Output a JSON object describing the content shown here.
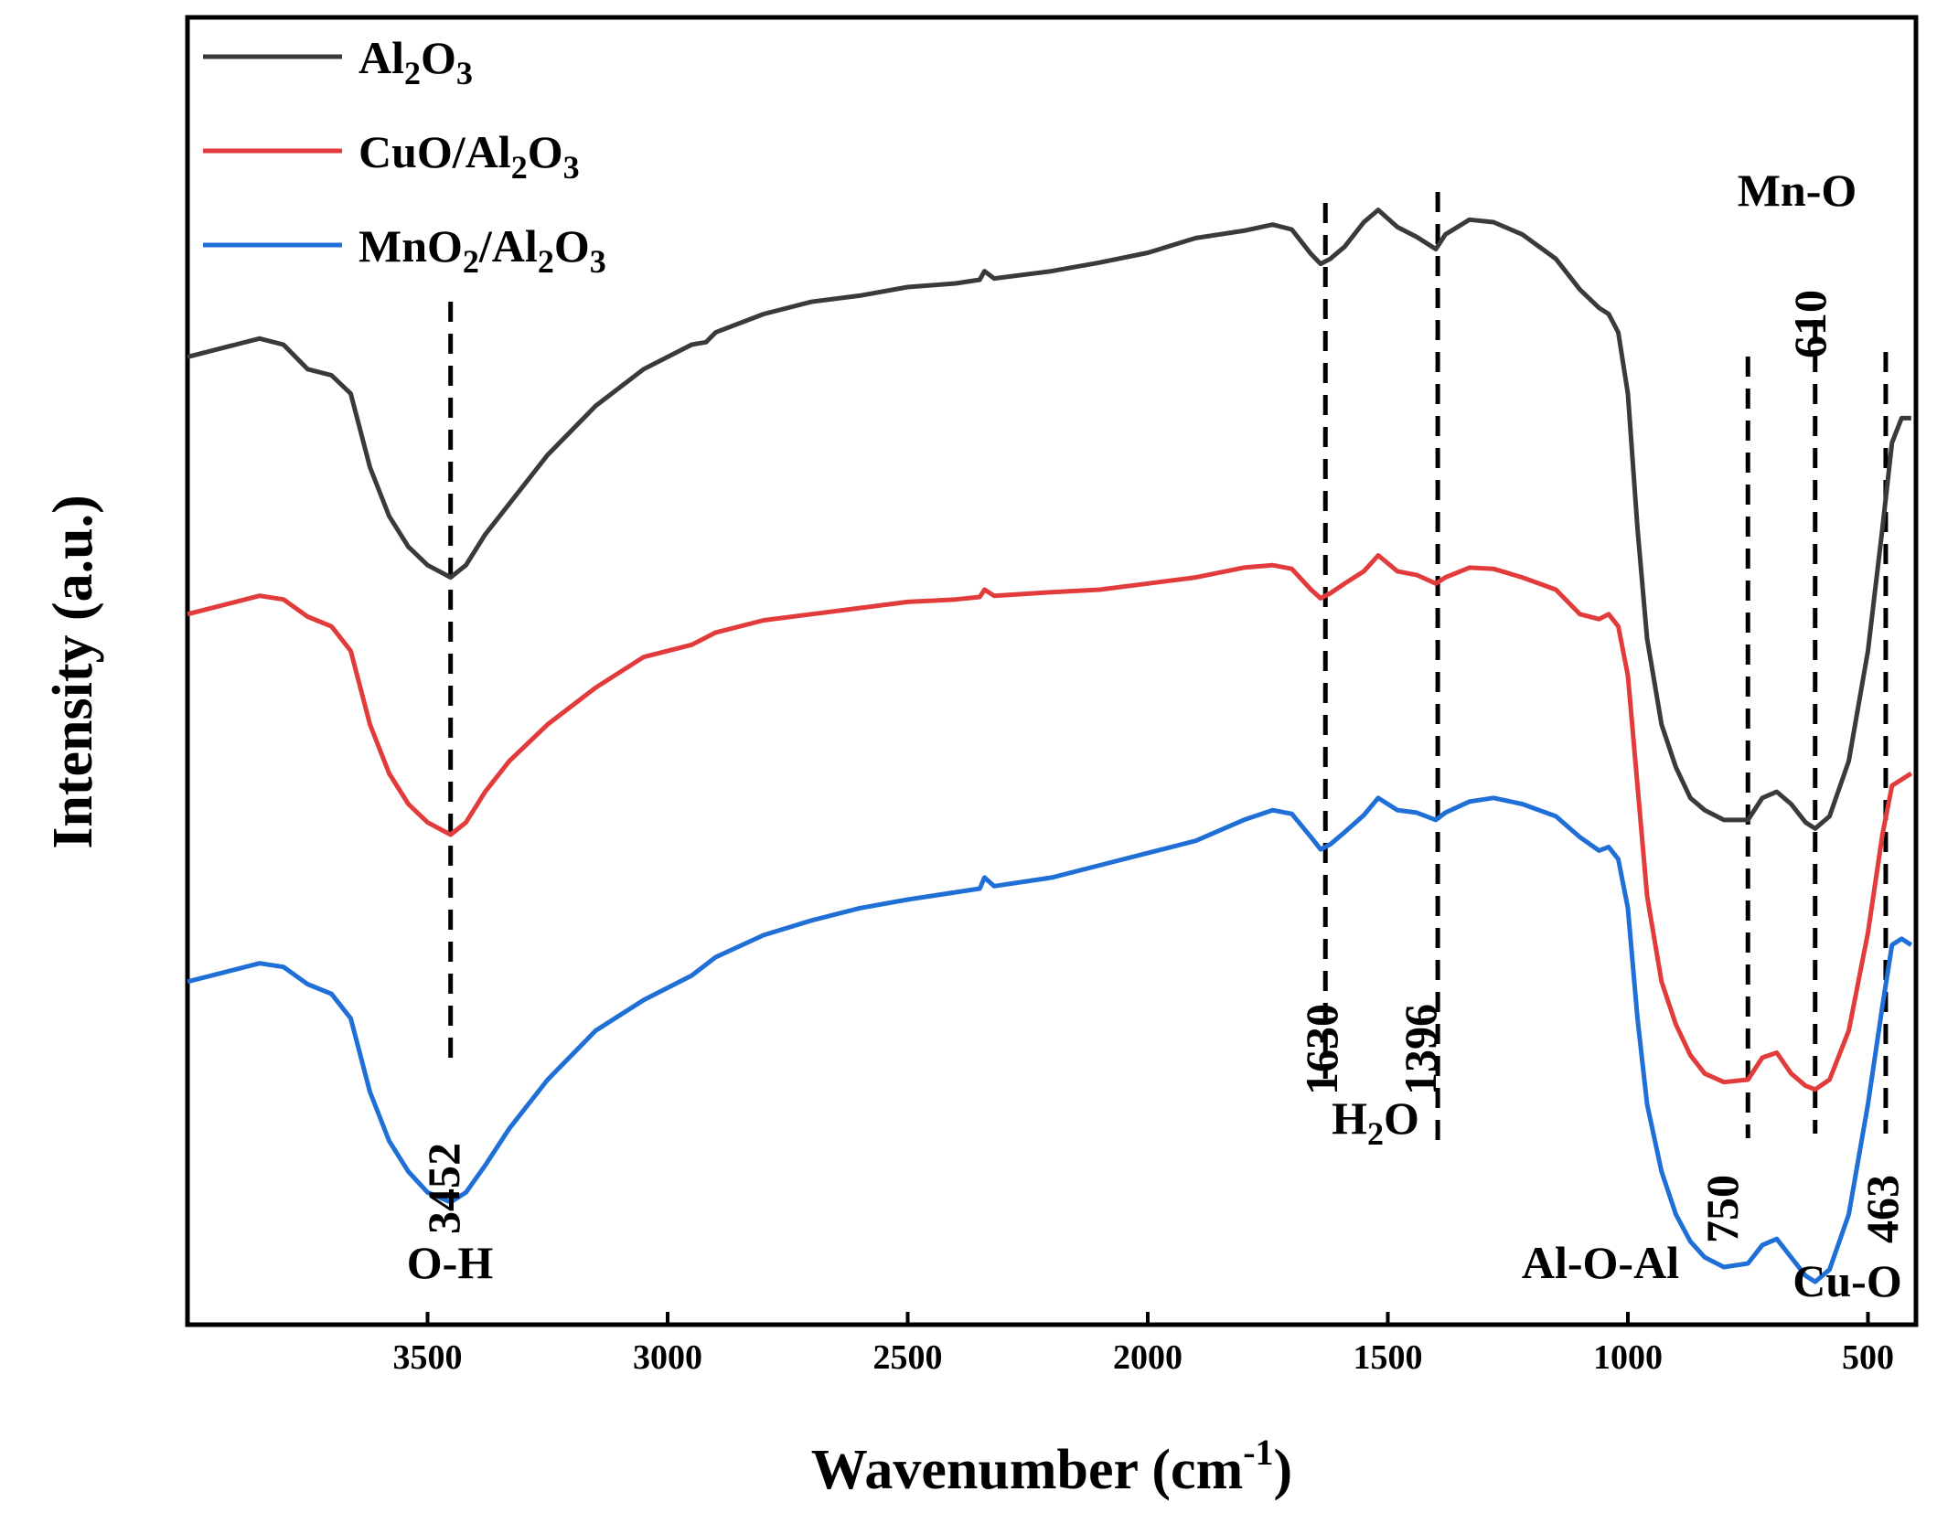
{
  "chart_data": {
    "type": "line",
    "xlabel": "Wavenumber (cm",
    "xlabel_sup": "-1",
    "xlabel_close": ")",
    "ylabel": "Intensity (a.u.)",
    "x_reversed": true,
    "xlim": [
      4000,
      400
    ],
    "x_ticks": [
      3500,
      3000,
      2500,
      2000,
      1500,
      1000,
      500
    ],
    "x_tick_labels": [
      "3500",
      "3000",
      "2500",
      "2000",
      "1500",
      "1000",
      "500"
    ],
    "y_ticks_shown": false,
    "legend_position": "top-left",
    "series": [
      {
        "name": "Al2O3",
        "label_parts": [
          [
            "Al",
            ""
          ],
          [
            "2",
            "sub"
          ],
          [
            "O",
            ""
          ],
          [
            "3",
            "sub"
          ]
        ],
        "color": "#3a3a3a",
        "points": [
          [
            4000,
            0.79
          ],
          [
            3900,
            0.8
          ],
          [
            3850,
            0.805
          ],
          [
            3800,
            0.8
          ],
          [
            3750,
            0.78
          ],
          [
            3700,
            0.775
          ],
          [
            3660,
            0.76
          ],
          [
            3620,
            0.7
          ],
          [
            3580,
            0.66
          ],
          [
            3540,
            0.635
          ],
          [
            3500,
            0.62
          ],
          [
            3452,
            0.61
          ],
          [
            3420,
            0.62
          ],
          [
            3380,
            0.645
          ],
          [
            3330,
            0.67
          ],
          [
            3250,
            0.71
          ],
          [
            3150,
            0.75
          ],
          [
            3050,
            0.78
          ],
          [
            2950,
            0.8
          ],
          [
            2920,
            0.802
          ],
          [
            2900,
            0.81
          ],
          [
            2800,
            0.825
          ],
          [
            2700,
            0.835
          ],
          [
            2600,
            0.84
          ],
          [
            2500,
            0.847
          ],
          [
            2400,
            0.85
          ],
          [
            2350,
            0.853
          ],
          [
            2340,
            0.86
          ],
          [
            2320,
            0.854
          ],
          [
            2200,
            0.86
          ],
          [
            2100,
            0.867
          ],
          [
            2000,
            0.875
          ],
          [
            1900,
            0.887
          ],
          [
            1800,
            0.893
          ],
          [
            1740,
            0.898
          ],
          [
            1700,
            0.894
          ],
          [
            1660,
            0.874
          ],
          [
            1640,
            0.866
          ],
          [
            1620,
            0.87
          ],
          [
            1590,
            0.88
          ],
          [
            1550,
            0.9
          ],
          [
            1520,
            0.91
          ],
          [
            1480,
            0.896
          ],
          [
            1440,
            0.888
          ],
          [
            1400,
            0.878
          ],
          [
            1380,
            0.89
          ],
          [
            1330,
            0.902
          ],
          [
            1280,
            0.9
          ],
          [
            1220,
            0.89
          ],
          [
            1150,
            0.87
          ],
          [
            1100,
            0.845
          ],
          [
            1060,
            0.83
          ],
          [
            1040,
            0.825
          ],
          [
            1020,
            0.81
          ],
          [
            1000,
            0.76
          ],
          [
            980,
            0.65
          ],
          [
            960,
            0.56
          ],
          [
            930,
            0.49
          ],
          [
            900,
            0.455
          ],
          [
            870,
            0.43
          ],
          [
            840,
            0.42
          ],
          [
            800,
            0.412
          ],
          [
            750,
            0.412
          ],
          [
            720,
            0.43
          ],
          [
            690,
            0.435
          ],
          [
            660,
            0.425
          ],
          [
            630,
            0.41
          ],
          [
            610,
            0.405
          ],
          [
            580,
            0.415
          ],
          [
            540,
            0.46
          ],
          [
            500,
            0.55
          ],
          [
            470,
            0.65
          ],
          [
            450,
            0.72
          ],
          [
            430,
            0.74
          ],
          [
            410,
            0.74
          ]
        ]
      },
      {
        "name": "CuO/Al2O3",
        "label_parts": [
          [
            "CuO/Al",
            ""
          ],
          [
            "2",
            "sub"
          ],
          [
            "O",
            ""
          ],
          [
            "3",
            "sub"
          ]
        ],
        "color": "#e23b3b",
        "points": [
          [
            4000,
            0.58
          ],
          [
            3900,
            0.59
          ],
          [
            3850,
            0.595
          ],
          [
            3800,
            0.592
          ],
          [
            3750,
            0.578
          ],
          [
            3700,
            0.57
          ],
          [
            3660,
            0.55
          ],
          [
            3620,
            0.49
          ],
          [
            3580,
            0.45
          ],
          [
            3540,
            0.425
          ],
          [
            3500,
            0.41
          ],
          [
            3452,
            0.4
          ],
          [
            3420,
            0.41
          ],
          [
            3380,
            0.435
          ],
          [
            3330,
            0.46
          ],
          [
            3250,
            0.49
          ],
          [
            3150,
            0.52
          ],
          [
            3050,
            0.545
          ],
          [
            2950,
            0.555
          ],
          [
            2900,
            0.565
          ],
          [
            2800,
            0.575
          ],
          [
            2700,
            0.58
          ],
          [
            2600,
            0.585
          ],
          [
            2500,
            0.59
          ],
          [
            2400,
            0.592
          ],
          [
            2350,
            0.594
          ],
          [
            2340,
            0.6
          ],
          [
            2320,
            0.595
          ],
          [
            2200,
            0.598
          ],
          [
            2100,
            0.6
          ],
          [
            2000,
            0.605
          ],
          [
            1900,
            0.61
          ],
          [
            1800,
            0.618
          ],
          [
            1740,
            0.62
          ],
          [
            1700,
            0.617
          ],
          [
            1660,
            0.6
          ],
          [
            1640,
            0.593
          ],
          [
            1620,
            0.597
          ],
          [
            1590,
            0.605
          ],
          [
            1550,
            0.615
          ],
          [
            1520,
            0.628
          ],
          [
            1480,
            0.615
          ],
          [
            1440,
            0.612
          ],
          [
            1400,
            0.605
          ],
          [
            1380,
            0.61
          ],
          [
            1330,
            0.618
          ],
          [
            1280,
            0.617
          ],
          [
            1220,
            0.61
          ],
          [
            1150,
            0.6
          ],
          [
            1100,
            0.58
          ],
          [
            1060,
            0.576
          ],
          [
            1040,
            0.58
          ],
          [
            1020,
            0.57
          ],
          [
            1000,
            0.53
          ],
          [
            980,
            0.44
          ],
          [
            960,
            0.35
          ],
          [
            930,
            0.28
          ],
          [
            900,
            0.245
          ],
          [
            870,
            0.22
          ],
          [
            840,
            0.205
          ],
          [
            800,
            0.198
          ],
          [
            750,
            0.2
          ],
          [
            720,
            0.218
          ],
          [
            690,
            0.222
          ],
          [
            660,
            0.205
          ],
          [
            630,
            0.195
          ],
          [
            610,
            0.192
          ],
          [
            580,
            0.2
          ],
          [
            540,
            0.24
          ],
          [
            500,
            0.32
          ],
          [
            470,
            0.4
          ],
          [
            450,
            0.44
          ],
          [
            430,
            0.445
          ],
          [
            410,
            0.45
          ]
        ]
      },
      {
        "name": "MnO2/Al2O3",
        "label_parts": [
          [
            "MnO",
            ""
          ],
          [
            "2",
            "sub"
          ],
          [
            "/Al",
            ""
          ],
          [
            "2",
            "sub"
          ],
          [
            "O",
            ""
          ],
          [
            "3",
            "sub"
          ]
        ],
        "color": "#1f6fd6",
        "points": [
          [
            4000,
            0.28
          ],
          [
            3900,
            0.29
          ],
          [
            3850,
            0.295
          ],
          [
            3800,
            0.292
          ],
          [
            3750,
            0.278
          ],
          [
            3700,
            0.27
          ],
          [
            3660,
            0.25
          ],
          [
            3620,
            0.19
          ],
          [
            3580,
            0.15
          ],
          [
            3540,
            0.125
          ],
          [
            3500,
            0.108
          ],
          [
            3452,
            0.1
          ],
          [
            3420,
            0.108
          ],
          [
            3380,
            0.13
          ],
          [
            3330,
            0.16
          ],
          [
            3250,
            0.2
          ],
          [
            3150,
            0.24
          ],
          [
            3050,
            0.265
          ],
          [
            2950,
            0.285
          ],
          [
            2900,
            0.3
          ],
          [
            2800,
            0.318
          ],
          [
            2700,
            0.33
          ],
          [
            2600,
            0.34
          ],
          [
            2500,
            0.347
          ],
          [
            2400,
            0.353
          ],
          [
            2350,
            0.356
          ],
          [
            2340,
            0.365
          ],
          [
            2320,
            0.358
          ],
          [
            2200,
            0.365
          ],
          [
            2100,
            0.375
          ],
          [
            2000,
            0.385
          ],
          [
            1900,
            0.395
          ],
          [
            1800,
            0.412
          ],
          [
            1740,
            0.42
          ],
          [
            1700,
            0.417
          ],
          [
            1660,
            0.398
          ],
          [
            1640,
            0.388
          ],
          [
            1620,
            0.392
          ],
          [
            1590,
            0.402
          ],
          [
            1550,
            0.416
          ],
          [
            1520,
            0.43
          ],
          [
            1480,
            0.42
          ],
          [
            1440,
            0.418
          ],
          [
            1400,
            0.412
          ],
          [
            1380,
            0.418
          ],
          [
            1330,
            0.427
          ],
          [
            1280,
            0.43
          ],
          [
            1220,
            0.425
          ],
          [
            1150,
            0.415
          ],
          [
            1100,
            0.398
          ],
          [
            1060,
            0.387
          ],
          [
            1040,
            0.39
          ],
          [
            1020,
            0.38
          ],
          [
            1000,
            0.34
          ],
          [
            980,
            0.25
          ],
          [
            960,
            0.18
          ],
          [
            930,
            0.125
          ],
          [
            900,
            0.09
          ],
          [
            870,
            0.068
          ],
          [
            840,
            0.055
          ],
          [
            800,
            0.047
          ],
          [
            750,
            0.05
          ],
          [
            720,
            0.065
          ],
          [
            690,
            0.07
          ],
          [
            660,
            0.055
          ],
          [
            630,
            0.04
          ],
          [
            610,
            0.035
          ],
          [
            580,
            0.045
          ],
          [
            540,
            0.09
          ],
          [
            500,
            0.18
          ],
          [
            470,
            0.26
          ],
          [
            450,
            0.31
          ],
          [
            430,
            0.315
          ],
          [
            410,
            0.31
          ]
        ]
      }
    ],
    "reference_lines": [
      3452,
      1630,
      1396,
      750,
      610,
      463
    ],
    "annotations": [
      {
        "parts": [
          [
            "3452",
            ""
          ]
        ],
        "rotated": true,
        "x": 3452
      },
      {
        "parts": [
          [
            "O-H",
            ""
          ]
        ],
        "rotated": false,
        "x": 3452
      },
      {
        "parts": [
          [
            "1630",
            ""
          ]
        ],
        "rotated": true,
        "x": 1630
      },
      {
        "parts": [
          [
            "1396",
            ""
          ]
        ],
        "rotated": true,
        "x": 1396
      },
      {
        "parts": [
          [
            "H",
            ""
          ],
          [
            "2",
            "sub"
          ],
          [
            "O",
            ""
          ]
        ],
        "rotated": false,
        "x": 1513
      },
      {
        "parts": [
          [
            "750",
            ""
          ]
        ],
        "rotated": true,
        "x": 750
      },
      {
        "parts": [
          [
            "Al-O-Al",
            ""
          ]
        ],
        "rotated": false,
        "x": 895
      },
      {
        "parts": [
          [
            "610",
            ""
          ]
        ],
        "rotated": true,
        "x": 610
      },
      {
        "parts": [
          [
            "Mn-O",
            ""
          ]
        ],
        "rotated": false,
        "x": 625
      },
      {
        "parts": [
          [
            "463",
            ""
          ]
        ],
        "rotated": true,
        "x": 463
      },
      {
        "parts": [
          [
            "Cu-O",
            ""
          ]
        ],
        "rotated": false,
        "x": 555
      }
    ]
  }
}
